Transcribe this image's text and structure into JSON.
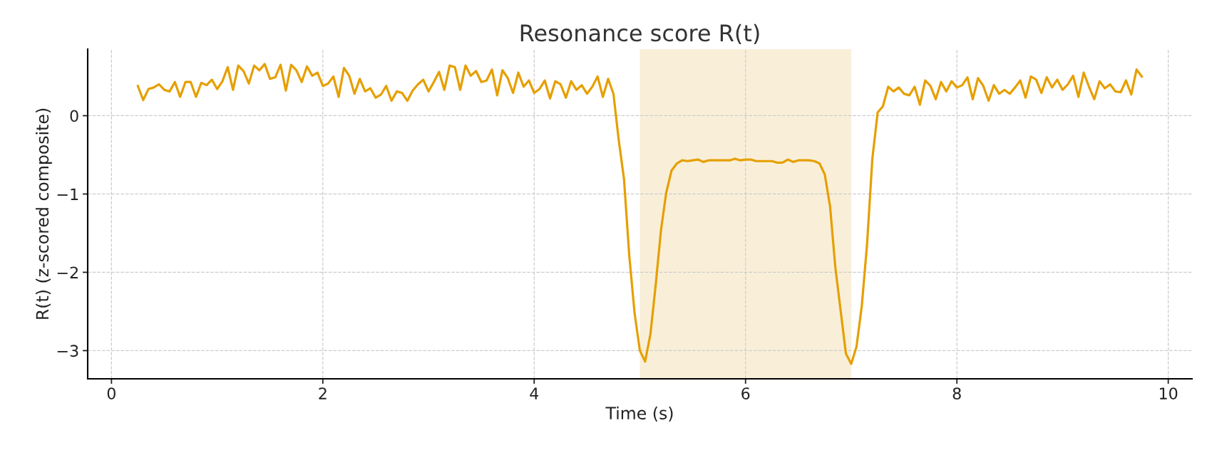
{
  "chart_data": {
    "type": "line",
    "title": "Resonance score R(t)",
    "xlabel": "Time (s)",
    "ylabel": "R(t) (z-scored composite)",
    "x": [
      0.25,
      0.3,
      0.35,
      0.4,
      0.45,
      0.5,
      0.55,
      0.6,
      0.65,
      0.7,
      0.75,
      0.8,
      0.85,
      0.9,
      0.95,
      1.0,
      1.05,
      1.1,
      1.15,
      1.2,
      1.25,
      1.3,
      1.35,
      1.4,
      1.45,
      1.5,
      1.55,
      1.6,
      1.65,
      1.7,
      1.75,
      1.8,
      1.85,
      1.9,
      1.95,
      2.0,
      2.05,
      2.1,
      2.15,
      2.2,
      2.25,
      2.3,
      2.35,
      2.4,
      2.45,
      2.5,
      2.55,
      2.6,
      2.65,
      2.7,
      2.75,
      2.8,
      2.85,
      2.9,
      2.95,
      3.0,
      3.05,
      3.1,
      3.15,
      3.2,
      3.25,
      3.3,
      3.35,
      3.4,
      3.45,
      3.5,
      3.55,
      3.6,
      3.65,
      3.7,
      3.75,
      3.8,
      3.85,
      3.9,
      3.95,
      4.0,
      4.05,
      4.1,
      4.15,
      4.2,
      4.25,
      4.3,
      4.35,
      4.4,
      4.45,
      4.5,
      4.55,
      4.6,
      4.65,
      4.7,
      4.75,
      4.8,
      4.85,
      4.9,
      4.95,
      5.0,
      5.05,
      5.1,
      5.15,
      5.2,
      5.25,
      5.3,
      5.35,
      5.4,
      5.45,
      5.5,
      5.55,
      5.6,
      5.65,
      5.7,
      5.75,
      5.8,
      5.85,
      5.9,
      5.95,
      6.0,
      6.05,
      6.1,
      6.15,
      6.2,
      6.25,
      6.3,
      6.35,
      6.4,
      6.45,
      6.5,
      6.55,
      6.6,
      6.65,
      6.7,
      6.75,
      6.8,
      6.85,
      6.9,
      6.95,
      7.0,
      7.05,
      7.1,
      7.15,
      7.2,
      7.25,
      7.3,
      7.35,
      7.4,
      7.45,
      7.5,
      7.55,
      7.6,
      7.65,
      7.7,
      7.75,
      7.8,
      7.85,
      7.9,
      7.95,
      8.0,
      8.05,
      8.1,
      8.15,
      8.2,
      8.25,
      8.3,
      8.35,
      8.4,
      8.45,
      8.5,
      8.55,
      8.6,
      8.65,
      8.7,
      8.75,
      8.8,
      8.85,
      8.9,
      8.95,
      9.0,
      9.05,
      9.1,
      9.15,
      9.2,
      9.25,
      9.3,
      9.35,
      9.4,
      9.45,
      9.5,
      9.55,
      9.6,
      9.65,
      9.7,
      9.75
    ],
    "series": [
      {
        "color": "#e69f00",
        "values": [
          0.38,
          0.2,
          0.34,
          0.36,
          0.4,
          0.33,
          0.31,
          0.43,
          0.24,
          0.43,
          0.43,
          0.24,
          0.42,
          0.39,
          0.46,
          0.34,
          0.44,
          0.62,
          0.33,
          0.64,
          0.57,
          0.41,
          0.64,
          0.58,
          0.66,
          0.47,
          0.49,
          0.65,
          0.32,
          0.65,
          0.58,
          0.43,
          0.63,
          0.51,
          0.55,
          0.38,
          0.41,
          0.5,
          0.24,
          0.61,
          0.51,
          0.28,
          0.47,
          0.31,
          0.35,
          0.23,
          0.27,
          0.38,
          0.19,
          0.31,
          0.29,
          0.19,
          0.32,
          0.4,
          0.46,
          0.31,
          0.43,
          0.56,
          0.33,
          0.64,
          0.62,
          0.33,
          0.64,
          0.51,
          0.57,
          0.43,
          0.45,
          0.59,
          0.26,
          0.58,
          0.48,
          0.29,
          0.55,
          0.37,
          0.45,
          0.29,
          0.34,
          0.45,
          0.22,
          0.44,
          0.4,
          0.23,
          0.44,
          0.33,
          0.39,
          0.28,
          0.37,
          0.5,
          0.24,
          0.47,
          0.28,
          -0.31,
          -0.81,
          -1.79,
          -2.52,
          -3.0,
          -3.14,
          -2.79,
          -2.16,
          -1.46,
          -0.98,
          -0.7,
          -0.61,
          -0.57,
          -0.58,
          -0.57,
          -0.56,
          -0.59,
          -0.57,
          -0.57,
          -0.57,
          -0.57,
          -0.57,
          -0.55,
          -0.57,
          -0.56,
          -0.56,
          -0.58,
          -0.58,
          -0.58,
          -0.58,
          -0.6,
          -0.6,
          -0.56,
          -0.59,
          -0.57,
          -0.57,
          -0.57,
          -0.58,
          -0.61,
          -0.75,
          -1.16,
          -1.94,
          -2.49,
          -3.04,
          -3.17,
          -2.95,
          -2.43,
          -1.64,
          -0.55,
          0.04,
          0.12,
          0.37,
          0.31,
          0.36,
          0.28,
          0.26,
          0.37,
          0.14,
          0.45,
          0.38,
          0.21,
          0.43,
          0.31,
          0.44,
          0.36,
          0.39,
          0.49,
          0.21,
          0.48,
          0.38,
          0.19,
          0.39,
          0.28,
          0.33,
          0.28,
          0.36,
          0.45,
          0.23,
          0.5,
          0.46,
          0.29,
          0.49,
          0.36,
          0.46,
          0.33,
          0.4,
          0.51,
          0.24,
          0.55,
          0.37,
          0.21,
          0.44,
          0.35,
          0.4,
          0.31,
          0.3,
          0.45,
          0.27,
          0.59,
          0.5
        ]
      }
    ],
    "bands": [
      {
        "axis": "x",
        "from": 5,
        "to": 7,
        "color": "#f9efd9"
      }
    ],
    "xlim": [
      -0.225,
      10.225
    ],
    "ylim": [
      -3.36,
      0.85
    ],
    "xticks": [
      0,
      2,
      4,
      6,
      8,
      10
    ],
    "yticks": [
      {
        "value": 0,
        "label": "0"
      },
      {
        "value": -1,
        "label": "−1"
      },
      {
        "value": -2,
        "label": "−2"
      },
      {
        "value": -3,
        "label": "−3"
      }
    ],
    "grid": true,
    "line_style": "solid",
    "marker": "none"
  }
}
